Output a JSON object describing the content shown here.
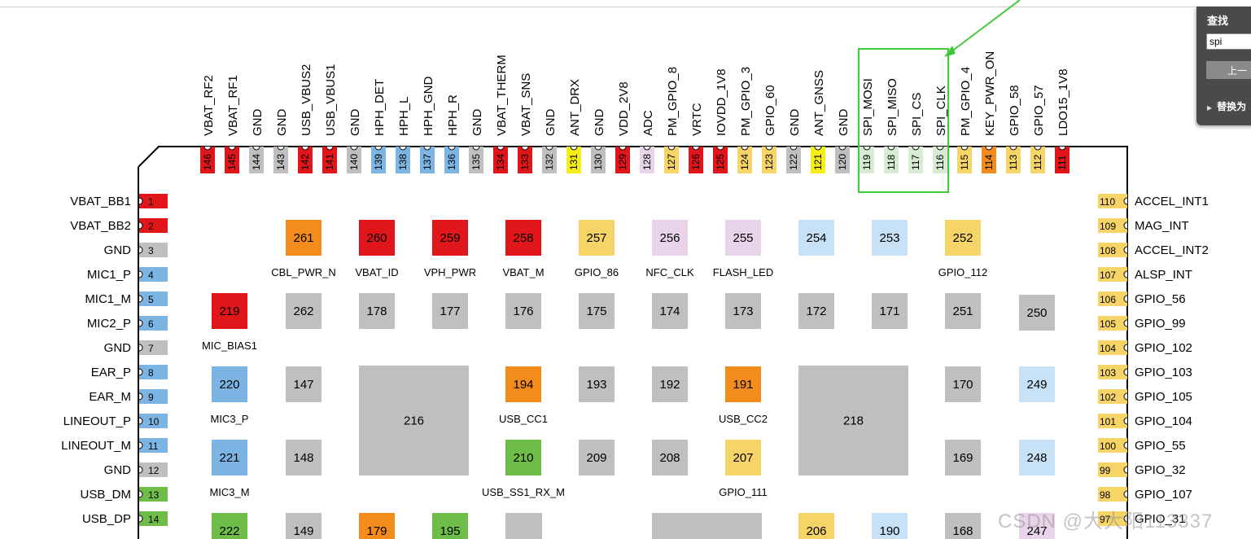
{
  "colors": {
    "red": "#e0161b",
    "gray": "#bfbfbf",
    "blue": "#7cb5e4",
    "lightblue": "#c7e1f6",
    "green": "#6ebd48",
    "lightgreen": "#d8ecd3",
    "orange": "#f38c1c",
    "yellow": "#f7d468",
    "brightyellow": "#f5ee17",
    "pink": "#e8d3ea",
    "highlight": "#3ecb3a"
  },
  "top_pins": [
    {
      "num": "146",
      "name": "VBAT_RF2",
      "color": "red"
    },
    {
      "num": "145",
      "name": "VBAT_RF1",
      "color": "red"
    },
    {
      "num": "144",
      "name": "GND",
      "color": "gray"
    },
    {
      "num": "143",
      "name": "GND",
      "color": "gray"
    },
    {
      "num": "142",
      "name": "USB_VBUS2",
      "color": "red"
    },
    {
      "num": "141",
      "name": "USB_VBUS1",
      "color": "red"
    },
    {
      "num": "140",
      "name": "GND",
      "color": "gray"
    },
    {
      "num": "139",
      "name": "HPH_DET",
      "color": "blue"
    },
    {
      "num": "138",
      "name": "HPH_L",
      "color": "blue"
    },
    {
      "num": "137",
      "name": "HPH_GND",
      "color": "blue"
    },
    {
      "num": "136",
      "name": "HPH_R",
      "color": "blue"
    },
    {
      "num": "135",
      "name": "GND",
      "color": "gray"
    },
    {
      "num": "134",
      "name": "VBAT_THERM",
      "color": "red"
    },
    {
      "num": "133",
      "name": "VBAT_SNS",
      "color": "red"
    },
    {
      "num": "132",
      "name": "GND",
      "color": "gray"
    },
    {
      "num": "131",
      "name": "ANT_DRX",
      "color": "brightyellow"
    },
    {
      "num": "130",
      "name": "GND",
      "color": "gray"
    },
    {
      "num": "129",
      "name": "VDD_2V8",
      "color": "red"
    },
    {
      "num": "128",
      "name": "ADC",
      "color": "pink"
    },
    {
      "num": "127",
      "name": "PM_GPIO_8",
      "color": "yellow"
    },
    {
      "num": "126",
      "name": "VRTC",
      "color": "red"
    },
    {
      "num": "125",
      "name": "IOVDD_1V8",
      "color": "red"
    },
    {
      "num": "124",
      "name": "PM_GPIO_3",
      "color": "yellow"
    },
    {
      "num": "123",
      "name": "GPIO_60",
      "color": "yellow"
    },
    {
      "num": "122",
      "name": "GND",
      "color": "gray"
    },
    {
      "num": "121",
      "name": "ANT_GNSS",
      "color": "brightyellow"
    },
    {
      "num": "120",
      "name": "GND",
      "color": "gray"
    },
    {
      "num": "119",
      "name": "SPI_MOSI",
      "color": "lightgreen"
    },
    {
      "num": "118",
      "name": "SPI_MISO",
      "color": "lightgreen"
    },
    {
      "num": "117",
      "name": "SPI_CS",
      "color": "lightgreen"
    },
    {
      "num": "116",
      "name": "SPI_CLK",
      "color": "lightgreen"
    },
    {
      "num": "115",
      "name": "PM_GPIO_4",
      "color": "yellow"
    },
    {
      "num": "114",
      "name": "KEY_PWR_ON",
      "color": "orange"
    },
    {
      "num": "113",
      "name": "GPIO_58",
      "color": "yellow"
    },
    {
      "num": "112",
      "name": "GPIO_57",
      "color": "yellow"
    },
    {
      "num": "111",
      "name": "LDO15_1V8",
      "color": "red"
    }
  ],
  "left_pins": [
    {
      "num": "1",
      "name": "VBAT_BB1",
      "color": "red"
    },
    {
      "num": "2",
      "name": "VBAT_BB2",
      "color": "red"
    },
    {
      "num": "3",
      "name": "GND",
      "color": "gray"
    },
    {
      "num": "4",
      "name": "MIC1_P",
      "color": "blue"
    },
    {
      "num": "5",
      "name": "MIC1_M",
      "color": "blue"
    },
    {
      "num": "6",
      "name": "MIC2_P",
      "color": "blue"
    },
    {
      "num": "7",
      "name": "GND",
      "color": "gray"
    },
    {
      "num": "8",
      "name": "EAR_P",
      "color": "blue"
    },
    {
      "num": "9",
      "name": "EAR_M",
      "color": "blue"
    },
    {
      "num": "10",
      "name": "LINEOUT_P",
      "color": "blue"
    },
    {
      "num": "11",
      "name": "LINEOUT_M",
      "color": "blue"
    },
    {
      "num": "12",
      "name": "GND",
      "color": "gray"
    },
    {
      "num": "13",
      "name": "USB_DM",
      "color": "green"
    },
    {
      "num": "14",
      "name": "USB_DP",
      "color": "green"
    }
  ],
  "right_pins": [
    {
      "num": "110",
      "name": "ACCEL_INT1",
      "color": "yellow"
    },
    {
      "num": "109",
      "name": "MAG_INT",
      "color": "yellow"
    },
    {
      "num": "108",
      "name": "ACCEL_INT2",
      "color": "yellow"
    },
    {
      "num": "107",
      "name": "ALSP_INT",
      "color": "yellow"
    },
    {
      "num": "106",
      "name": "GPIO_56",
      "color": "yellow"
    },
    {
      "num": "105",
      "name": "GPIO_99",
      "color": "yellow"
    },
    {
      "num": "104",
      "name": "GPIO_102",
      "color": "yellow"
    },
    {
      "num": "103",
      "name": "GPIO_103",
      "color": "yellow"
    },
    {
      "num": "102",
      "name": "GPIO_105",
      "color": "yellow"
    },
    {
      "num": "101",
      "name": "GPIO_104",
      "color": "yellow"
    },
    {
      "num": "100",
      "name": "GPIO_55",
      "color": "yellow"
    },
    {
      "num": "99",
      "name": "GPIO_32",
      "color": "yellow"
    },
    {
      "num": "98",
      "name": "GPIO_107",
      "color": "yellow"
    },
    {
      "num": "97",
      "name": "GPIO_31",
      "color": "yellow"
    }
  ],
  "pads": [
    {
      "num": "261",
      "label": "CBL_PWR_N",
      "color": "orange"
    },
    {
      "num": "260",
      "label": "VBAT_ID",
      "color": "red"
    },
    {
      "num": "259",
      "label": "VPH_PWR",
      "color": "red"
    },
    {
      "num": "258",
      "label": "VBAT_M",
      "color": "red"
    },
    {
      "num": "257",
      "label": "GPIO_86",
      "color": "yellow"
    },
    {
      "num": "256",
      "label": "NFC_CLK",
      "color": "pink"
    },
    {
      "num": "255",
      "label": "FLASH_LED",
      "color": "pink"
    },
    {
      "num": "254",
      "label": "",
      "color": "lightblue"
    },
    {
      "num": "253",
      "label": "",
      "color": "lightblue"
    },
    {
      "num": "252",
      "label": "GPIO_112",
      "color": "yellow"
    },
    {
      "num": "219",
      "label": "MIC_BIAS1",
      "color": "red"
    },
    {
      "num": "262",
      "label": "",
      "color": "gray"
    },
    {
      "num": "178",
      "label": "",
      "color": "gray"
    },
    {
      "num": "177",
      "label": "",
      "color": "gray"
    },
    {
      "num": "176",
      "label": "",
      "color": "gray"
    },
    {
      "num": "175",
      "label": "",
      "color": "gray"
    },
    {
      "num": "174",
      "label": "",
      "color": "gray"
    },
    {
      "num": "173",
      "label": "",
      "color": "gray"
    },
    {
      "num": "172",
      "label": "",
      "color": "gray"
    },
    {
      "num": "171",
      "label": "",
      "color": "gray"
    },
    {
      "num": "251",
      "label": "",
      "color": "gray"
    },
    {
      "num": "250",
      "label": "",
      "color": "gray"
    },
    {
      "num": "220",
      "label": "MIC3_P",
      "color": "blue"
    },
    {
      "num": "147",
      "label": "",
      "color": "gray"
    },
    {
      "num": "194",
      "label": "USB_CC1",
      "color": "orange"
    },
    {
      "num": "193",
      "label": "",
      "color": "gray"
    },
    {
      "num": "192",
      "label": "",
      "color": "gray"
    },
    {
      "num": "191",
      "label": "USB_CC2",
      "color": "orange"
    },
    {
      "num": "170",
      "label": "",
      "color": "gray"
    },
    {
      "num": "249",
      "label": "",
      "color": "lightblue"
    },
    {
      "num": "221",
      "label": "MIC3_M",
      "color": "blue"
    },
    {
      "num": "148",
      "label": "",
      "color": "gray"
    },
    {
      "num": "210",
      "label": "USB_SS1_RX_M",
      "color": "green"
    },
    {
      "num": "209",
      "label": "",
      "color": "gray"
    },
    {
      "num": "208",
      "label": "",
      "color": "gray"
    },
    {
      "num": "207",
      "label": "GPIO_111",
      "color": "yellow"
    },
    {
      "num": "169",
      "label": "",
      "color": "gray"
    },
    {
      "num": "248",
      "label": "",
      "color": "lightblue"
    },
    {
      "num": "222",
      "label": "",
      "color": "green"
    },
    {
      "num": "149",
      "label": "",
      "color": "gray"
    },
    {
      "num": "179",
      "label": "",
      "color": "orange"
    },
    {
      "num": "195",
      "label": "",
      "color": "green"
    },
    {
      "num": "206",
      "label": "",
      "color": "yellow"
    },
    {
      "num": "190",
      "label": "",
      "color": "lightblue"
    },
    {
      "num": "168",
      "label": "",
      "color": "gray"
    },
    {
      "num": "247",
      "label": "",
      "color": "pink"
    }
  ],
  "large_pads": [
    {
      "num": "216",
      "color": "gray"
    },
    {
      "num": "218",
      "color": "gray"
    }
  ],
  "find_panel": {
    "title": "查找",
    "query": "spi",
    "prev_label": "上一",
    "replace_label": "替换为"
  },
  "watermark": "CSDN @大大阳113337"
}
